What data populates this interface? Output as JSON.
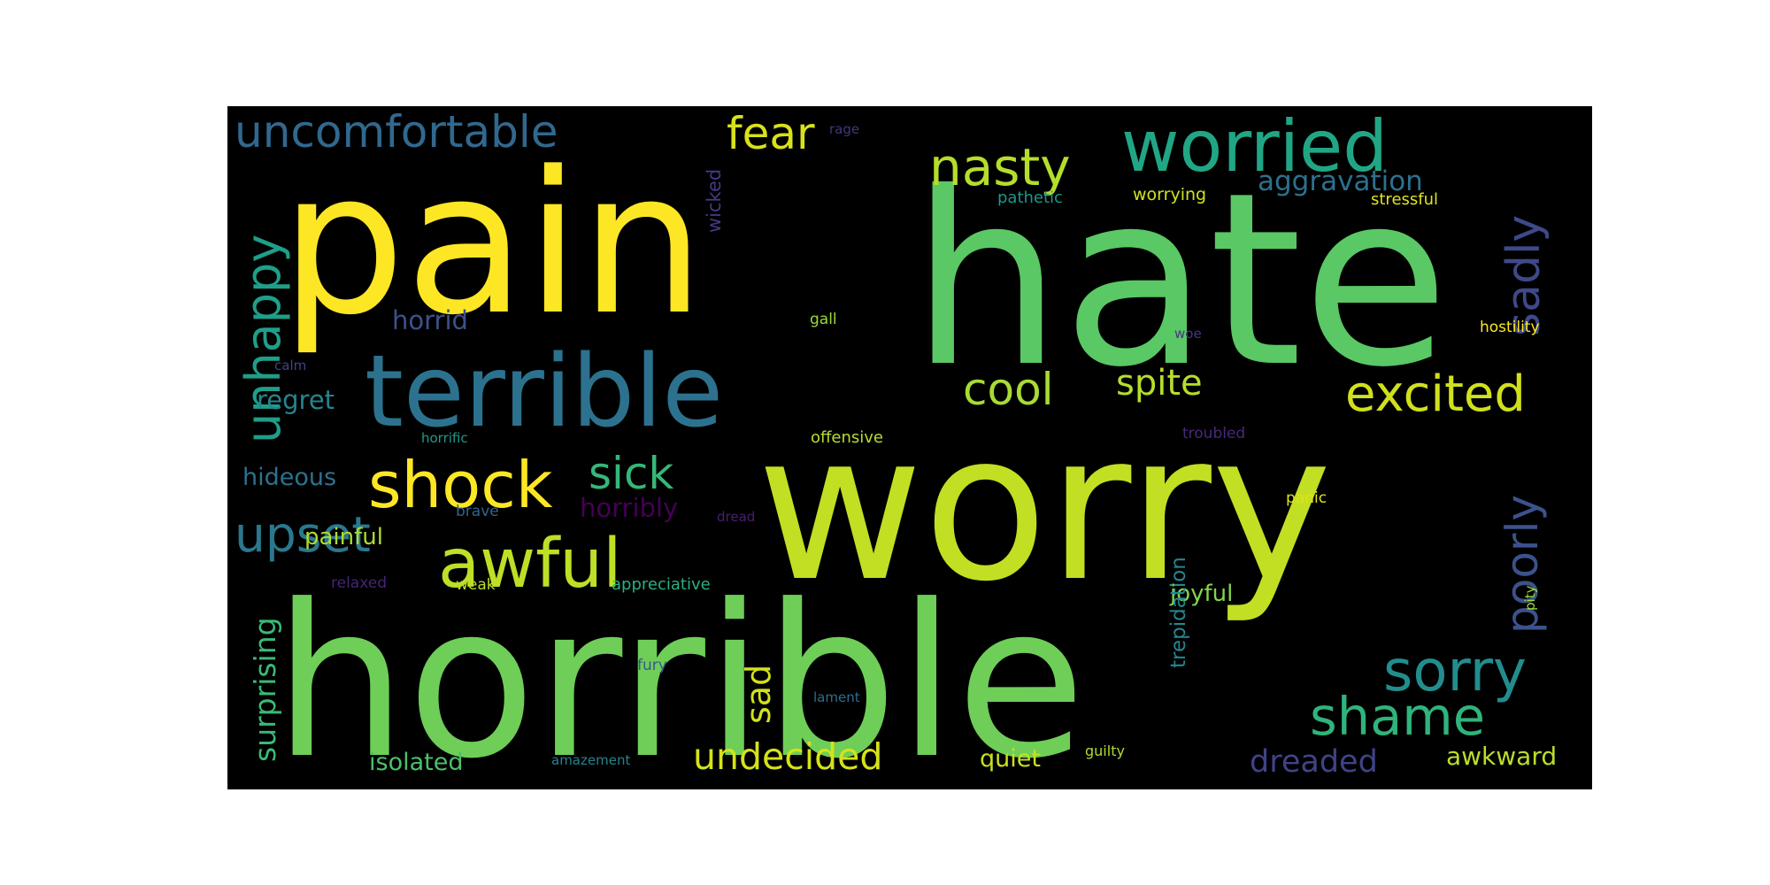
{
  "chart_data": {
    "type": "wordcloud",
    "background": "#000000",
    "words": [
      {
        "text": "hate",
        "color": "#5ac864"
      },
      {
        "text": "pain",
        "color": "#fde725"
      },
      {
        "text": "worry",
        "color": "#c2df23"
      },
      {
        "text": "horrible",
        "color": "#6ece58"
      },
      {
        "text": "terrible",
        "color": "#2c728e"
      },
      {
        "text": "worried",
        "color": "#21a685"
      },
      {
        "text": "nasty",
        "color": "#b5de2b"
      },
      {
        "text": "uncomfortable",
        "color": "#31688e"
      },
      {
        "text": "fear",
        "color": "#d8e219"
      },
      {
        "text": "unhappy",
        "color": "#1f9e89"
      },
      {
        "text": "sadly",
        "color": "#3e4989"
      },
      {
        "text": "aggravation",
        "color": "#2d708e"
      },
      {
        "text": "excited",
        "color": "#d0e11c"
      },
      {
        "text": "cool",
        "color": "#a8db34"
      },
      {
        "text": "spite",
        "color": "#b5de2b"
      },
      {
        "text": "shock",
        "color": "#fde725"
      },
      {
        "text": "sick",
        "color": "#35b779"
      },
      {
        "text": "awful",
        "color": "#bddf26"
      },
      {
        "text": "upset",
        "color": "#2a788e"
      },
      {
        "text": "horribly",
        "color": "#440154"
      },
      {
        "text": "sorry",
        "color": "#228d8d"
      },
      {
        "text": "poorly",
        "color": "#3b528b"
      },
      {
        "text": "shame",
        "color": "#2fb47c"
      },
      {
        "text": "sad",
        "color": "#d2e21b"
      },
      {
        "text": "undecided",
        "color": "#d5e21a"
      },
      {
        "text": "surprising",
        "color": "#3aba76"
      },
      {
        "text": "dreaded",
        "color": "#404387"
      },
      {
        "text": "awkward",
        "color": "#bade28"
      },
      {
        "text": "horrid",
        "color": "#3b528b"
      },
      {
        "text": "regret",
        "color": "#25858e"
      },
      {
        "text": "hideous",
        "color": "#2c728e"
      },
      {
        "text": "painful",
        "color": "#addc30"
      },
      {
        "text": "joyful",
        "color": "#84d44b"
      },
      {
        "text": "isolated",
        "color": "#4ac16d"
      },
      {
        "text": "quiet",
        "color": "#c8e020"
      },
      {
        "text": "trepidation",
        "color": "#24878e"
      },
      {
        "text": "wicked",
        "color": "#443983"
      },
      {
        "text": "pathetic",
        "color": "#1f968b"
      },
      {
        "text": "worrying",
        "color": "#d2e21b"
      },
      {
        "text": "stressful",
        "color": "#dfe318"
      },
      {
        "text": "rage",
        "color": "#46337e"
      },
      {
        "text": "gall",
        "color": "#9bd93c"
      },
      {
        "text": "woe",
        "color": "#453882"
      },
      {
        "text": "hostility",
        "color": "#fde725"
      },
      {
        "text": "calm",
        "color": "#414487"
      },
      {
        "text": "horrific",
        "color": "#1f9a8a"
      },
      {
        "text": "offensive",
        "color": "#b5de2b"
      },
      {
        "text": "troubled",
        "color": "#482878"
      },
      {
        "text": "brave",
        "color": "#33638d"
      },
      {
        "text": "dread",
        "color": "#481f70"
      },
      {
        "text": "panic",
        "color": "#dde318"
      },
      {
        "text": "relaxed",
        "color": "#482475"
      },
      {
        "text": "weak",
        "color": "#b8de29"
      },
      {
        "text": "appreciative",
        "color": "#2ab07f"
      },
      {
        "text": "pity",
        "color": "#9fda3a"
      },
      {
        "text": "fury",
        "color": "#39568c"
      },
      {
        "text": "lament",
        "color": "#2e6e8e"
      },
      {
        "text": "amazement",
        "color": "#25848e"
      },
      {
        "text": "guilty",
        "color": "#addc30"
      }
    ]
  }
}
